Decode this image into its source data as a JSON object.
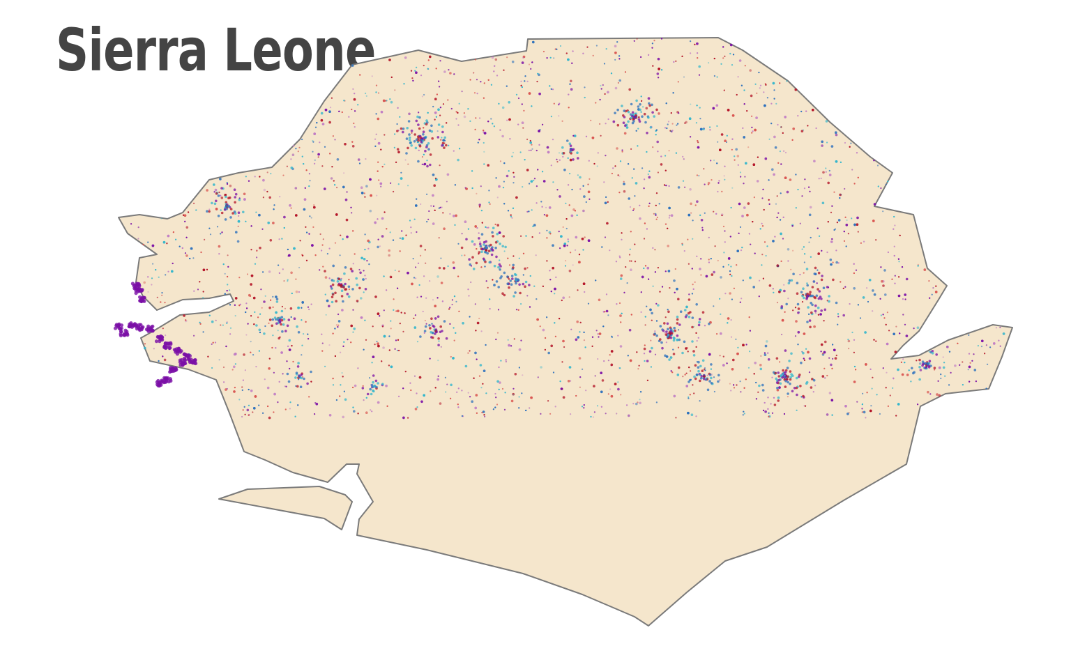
{
  "map": {
    "title": "Sierra Leone",
    "colors": {
      "title": "#444444",
      "land_fill": "#f5e6cc",
      "border_stroke": "#7a7a7a",
      "background": "#ffffff"
    },
    "point_palette": [
      "#7b0fa6",
      "#2a6fbd",
      "#32b6cc",
      "#b31226",
      "#d9534f",
      "#c07bc4"
    ],
    "features": [
      "country-outline",
      "sherbro-island",
      "freetown-peninsula",
      "settlement-points"
    ]
  }
}
